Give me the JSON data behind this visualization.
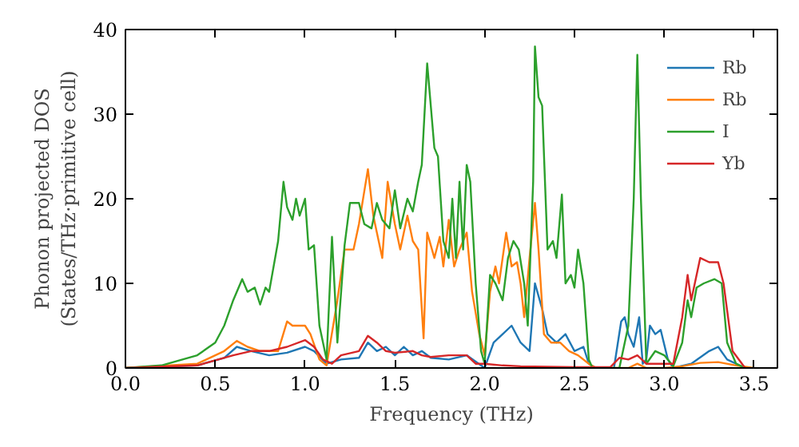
{
  "chart_data": {
    "type": "line",
    "xlabel": "Frequency (THz)",
    "ylabel": "Phonon projected DOS\n(States/THz·primitive cell)",
    "xlim": [
      0,
      3.63
    ],
    "ylim": [
      0,
      40
    ],
    "xticks": [
      {
        "value": 0,
        "label": "0.0"
      },
      {
        "value": 0.5,
        "label": "0.5"
      },
      {
        "value": 1,
        "label": "1.0"
      },
      {
        "value": 1.5,
        "label": "1.5"
      },
      {
        "value": 2,
        "label": "2.0"
      },
      {
        "value": 2.5,
        "label": "2.5"
      },
      {
        "value": 3,
        "label": "3.0"
      },
      {
        "value": 3.5,
        "label": "3.5"
      }
    ],
    "yticks": [
      0,
      10,
      20,
      30,
      40
    ],
    "grid": false,
    "legend": "top right",
    "line_style": "solid",
    "marker": "none",
    "series": [
      {
        "name": "Rb",
        "color": "#1f77b4",
        "x": [
          0,
          0.4,
          0.55,
          0.62,
          0.7,
          0.8,
          0.9,
          1.0,
          1.05,
          1.12,
          1.2,
          1.3,
          1.35,
          1.4,
          1.45,
          1.5,
          1.55,
          1.6,
          1.65,
          1.7,
          1.8,
          1.9,
          2.0,
          2.05,
          2.1,
          2.15,
          2.2,
          2.25,
          2.28,
          2.32,
          2.35,
          2.4,
          2.45,
          2.5,
          2.55,
          2.58,
          2.62,
          2.72,
          2.76,
          2.78,
          2.8,
          2.83,
          2.86,
          2.88,
          2.9,
          2.92,
          2.95,
          2.98,
          3.02,
          3.05,
          3.15,
          3.25,
          3.3,
          3.35,
          3.45
        ],
        "values": [
          0,
          0.3,
          1.2,
          2.5,
          2,
          1.5,
          1.8,
          2.5,
          2,
          0.5,
          1,
          1.2,
          3,
          2,
          2.5,
          1.5,
          2.5,
          1.5,
          2,
          1.2,
          1,
          1.5,
          0,
          3,
          4,
          5,
          3,
          2,
          10,
          7,
          4,
          3,
          4,
          2,
          2.5,
          0.5,
          0,
          0,
          5.5,
          6,
          4,
          2.5,
          6,
          0.5,
          1,
          5,
          4,
          4.5,
          1,
          0,
          0.5,
          2,
          2.5,
          1,
          0
        ]
      },
      {
        "name": "Rb",
        "color": "#ff7f0e",
        "x": [
          0,
          0.4,
          0.55,
          0.62,
          0.68,
          0.75,
          0.85,
          0.9,
          0.93,
          0.97,
          1.0,
          1.03,
          1.08,
          1.12,
          1.18,
          1.22,
          1.27,
          1.3,
          1.35,
          1.38,
          1.4,
          1.43,
          1.46,
          1.5,
          1.53,
          1.57,
          1.6,
          1.63,
          1.66,
          1.68,
          1.72,
          1.75,
          1.77,
          1.8,
          1.83,
          1.86,
          1.9,
          1.93,
          1.97,
          2.0,
          2.03,
          2.06,
          2.08,
          2.12,
          2.15,
          2.18,
          2.2,
          2.22,
          2.25,
          2.28,
          2.3,
          2.33,
          2.37,
          2.42,
          2.47,
          2.52,
          2.58,
          2.62,
          2.8,
          2.85,
          2.9,
          3.0,
          3.1,
          3.2,
          3.3,
          3.4,
          3.5
        ],
        "values": [
          0,
          0.5,
          2,
          3.2,
          2.5,
          2,
          2,
          5.5,
          5,
          5,
          5,
          4,
          1,
          0.3,
          8,
          14,
          14,
          17,
          23.5,
          18,
          16,
          13,
          22,
          17,
          14,
          18,
          15,
          14,
          3.5,
          16,
          13,
          15.5,
          12,
          17.5,
          12,
          14,
          16,
          9,
          4,
          1.5,
          9,
          12,
          10,
          16,
          12,
          12.5,
          10,
          6,
          13,
          19.5,
          14,
          4,
          3,
          3,
          2,
          1.5,
          0.5,
          0,
          0,
          0.5,
          0,
          0,
          0.2,
          0.6,
          0.7,
          0.3,
          0
        ]
      },
      {
        "name": "I",
        "color": "#2ca02c",
        "x": [
          0,
          0.2,
          0.4,
          0.5,
          0.55,
          0.6,
          0.65,
          0.68,
          0.72,
          0.75,
          0.78,
          0.8,
          0.85,
          0.88,
          0.9,
          0.93,
          0.95,
          0.97,
          1.0,
          1.02,
          1.05,
          1.08,
          1.12,
          1.15,
          1.18,
          1.22,
          1.25,
          1.3,
          1.33,
          1.37,
          1.4,
          1.43,
          1.47,
          1.5,
          1.53,
          1.57,
          1.6,
          1.63,
          1.65,
          1.68,
          1.72,
          1.74,
          1.77,
          1.8,
          1.82,
          1.84,
          1.86,
          1.88,
          1.9,
          1.92,
          1.95,
          1.98,
          2.0,
          2.03,
          2.06,
          2.1,
          2.13,
          2.16,
          2.19,
          2.22,
          2.24,
          2.27,
          2.28,
          2.3,
          2.32,
          2.35,
          2.38,
          2.4,
          2.43,
          2.45,
          2.48,
          2.5,
          2.52,
          2.55,
          2.58,
          2.6,
          2.75,
          2.8,
          2.83,
          2.85,
          2.87,
          2.9,
          2.95,
          3.0,
          3.05,
          3.1,
          3.13,
          3.15,
          3.18,
          3.22,
          3.28,
          3.32,
          3.35,
          3.4,
          3.45
        ],
        "values": [
          0,
          0.3,
          1.5,
          3,
          5,
          8,
          10.5,
          9,
          9.5,
          7.5,
          9.5,
          9,
          15,
          22,
          19,
          17.5,
          20,
          18,
          20,
          14,
          14.5,
          5,
          1,
          15.5,
          3,
          14.5,
          19.5,
          19.5,
          17,
          16.5,
          19.5,
          17.5,
          16.5,
          21,
          16.5,
          20,
          18.5,
          22,
          24,
          36,
          26,
          25,
          15,
          13,
          20,
          13,
          22,
          14,
          24,
          22,
          10,
          2,
          0.5,
          11,
          10,
          8,
          13,
          15,
          14,
          10,
          5,
          22,
          38,
          32,
          31,
          14,
          15,
          13,
          20.5,
          10,
          11,
          9.5,
          14,
          10,
          1,
          0,
          0,
          5,
          20,
          37,
          20,
          0.5,
          2,
          1.5,
          0.2,
          3,
          8,
          6,
          9.5,
          10,
          10.5,
          10,
          3,
          0.5,
          0
        ]
      },
      {
        "name": "Yb",
        "color": "#d62728",
        "x": [
          0,
          0.4,
          0.6,
          0.7,
          0.8,
          0.9,
          1.0,
          1.05,
          1.1,
          1.15,
          1.2,
          1.3,
          1.35,
          1.4,
          1.45,
          1.5,
          1.6,
          1.65,
          1.7,
          1.8,
          1.9,
          1.95,
          2.0,
          2.1,
          2.2,
          2.5,
          2.7,
          2.75,
          2.8,
          2.85,
          2.9,
          3.0,
          3.05,
          3.1,
          3.13,
          3.15,
          3.2,
          3.25,
          3.3,
          3.33,
          3.38,
          3.45
        ],
        "values": [
          0,
          0.3,
          1.5,
          2,
          2,
          2.5,
          3.3,
          2.5,
          1,
          0.5,
          1.5,
          2,
          3.8,
          3,
          2,
          1.8,
          2,
          1.5,
          1.3,
          1.5,
          1.5,
          0.5,
          0.5,
          0.3,
          0.2,
          0.1,
          0.1,
          1.2,
          1,
          1.5,
          0.5,
          0.5,
          0.5,
          6,
          11,
          8,
          13,
          12.5,
          12.5,
          10,
          2,
          0
        ]
      }
    ]
  }
}
